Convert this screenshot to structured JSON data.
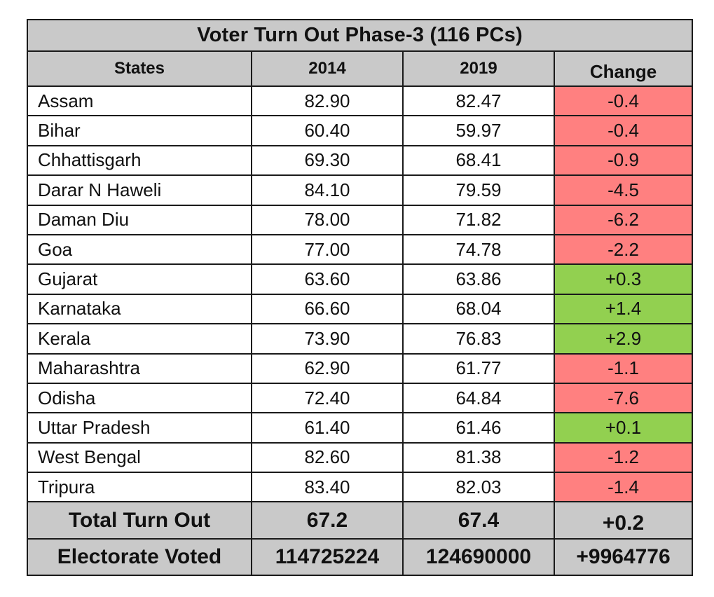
{
  "table": {
    "title": "Voter Turn Out Phase-3 (116 PCs)",
    "headers": [
      "States",
      "2014",
      "2019",
      "Change"
    ],
    "rows": [
      {
        "state": "Assam",
        "y2014": "82.90",
        "y2019": "82.47",
        "change": "-0.4",
        "status": "negative"
      },
      {
        "state": "Bihar",
        "y2014": "60.40",
        "y2019": "59.97",
        "change": "-0.4",
        "status": "negative"
      },
      {
        "state": "Chhattisgarh",
        "y2014": "69.30",
        "y2019": "68.41",
        "change": "-0.9",
        "status": "negative"
      },
      {
        "state": "Darar N Haweli",
        "y2014": "84.10",
        "y2019": "79.59",
        "change": "-4.5",
        "status": "negative"
      },
      {
        "state": "Daman Diu",
        "y2014": "78.00",
        "y2019": "71.82",
        "change": "-6.2",
        "status": "negative"
      },
      {
        "state": "Goa",
        "y2014": "77.00",
        "y2019": "74.78",
        "change": "-2.2",
        "status": "negative"
      },
      {
        "state": "Gujarat",
        "y2014": "63.60",
        "y2019": "63.86",
        "change": "+0.3",
        "status": "positive"
      },
      {
        "state": "Karnataka",
        "y2014": "66.60",
        "y2019": "68.04",
        "change": "+1.4",
        "status": "positive"
      },
      {
        "state": "Kerala",
        "y2014": "73.90",
        "y2019": "76.83",
        "change": "+2.9",
        "status": "positive"
      },
      {
        "state": "Maharashtra",
        "y2014": "62.90",
        "y2019": "61.77",
        "change": "-1.1",
        "status": "negative"
      },
      {
        "state": "Odisha",
        "y2014": "72.40",
        "y2019": "64.84",
        "change": "-7.6",
        "status": "negative"
      },
      {
        "state": "Uttar Pradesh",
        "y2014": "61.40",
        "y2019": "61.46",
        "change": "+0.1",
        "status": "positive"
      },
      {
        "state": "West Bengal",
        "y2014": "82.60",
        "y2019": "81.38",
        "change": "-1.2",
        "status": "negative"
      },
      {
        "state": "Tripura",
        "y2014": "83.40",
        "y2019": "82.03",
        "change": "-1.4",
        "status": "negative"
      }
    ],
    "total": {
      "label": "Total Turn Out",
      "y2014": "67.2",
      "y2019": "67.4",
      "change": "+0.2"
    },
    "electorate": {
      "label": "Electorate Voted",
      "y2014": "114725224",
      "y2019": "124690000",
      "change": "+9964776"
    }
  },
  "colors": {
    "header_bg": "#c9c9c9",
    "negative": "#ff8080",
    "positive": "#92d050",
    "border": "#1a1a1a"
  }
}
